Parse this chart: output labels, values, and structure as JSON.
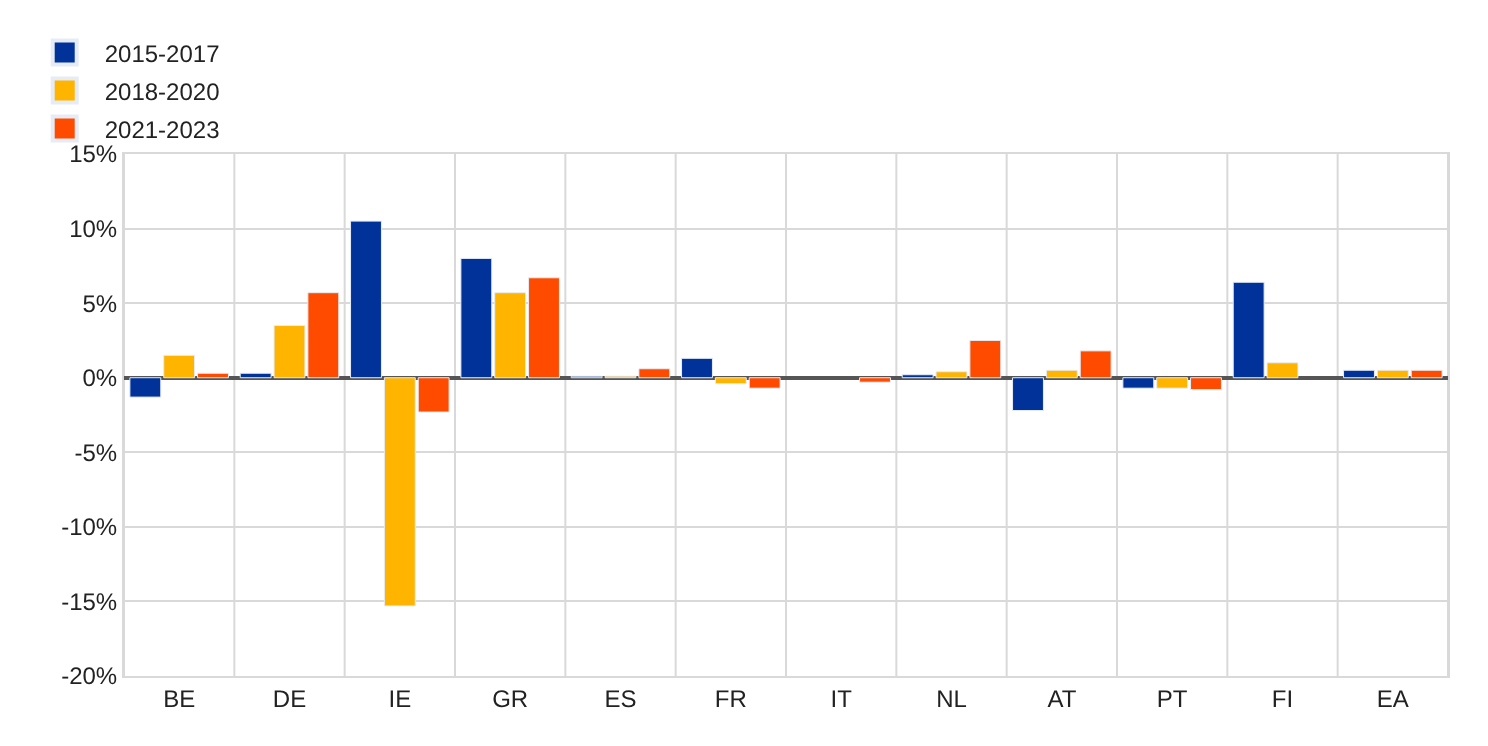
{
  "chart_data": {
    "type": "bar",
    "categories": [
      "BE",
      "DE",
      "IE",
      "GR",
      "ES",
      "FR",
      "IT",
      "NL",
      "AT",
      "PT",
      "FI",
      "EA"
    ],
    "series": [
      {
        "name": "2015-2017",
        "color": "#003299",
        "values": [
          -1.3,
          0.3,
          10.5,
          8.0,
          0.1,
          1.3,
          null,
          0.2,
          -2.2,
          -0.7,
          6.4,
          0.5
        ]
      },
      {
        "name": "2018-2020",
        "color": "#ffb400",
        "values": [
          1.5,
          3.5,
          -15.3,
          5.7,
          0.1,
          -0.4,
          null,
          0.4,
          0.5,
          -0.7,
          1.0,
          0.5
        ]
      },
      {
        "name": "2021-2023",
        "color": "#ff4b00",
        "values": [
          0.3,
          5.7,
          -2.3,
          6.7,
          0.6,
          -0.7,
          -0.3,
          2.5,
          1.8,
          -0.8,
          null,
          0.5
        ]
      }
    ],
    "ylim": [
      -20,
      15
    ],
    "yticks": [
      {
        "value": -20,
        "label": "-20%"
      },
      {
        "value": -15,
        "label": "-15%"
      },
      {
        "value": -10,
        "label": "-10%"
      },
      {
        "value": -5,
        "label": "-5%"
      },
      {
        "value": 0,
        "label": "0%"
      },
      {
        "value": 5,
        "label": "5%"
      },
      {
        "value": 10,
        "label": "10%"
      },
      {
        "value": 15,
        "label": "15%"
      }
    ],
    "grid": true,
    "legend": "top left"
  }
}
